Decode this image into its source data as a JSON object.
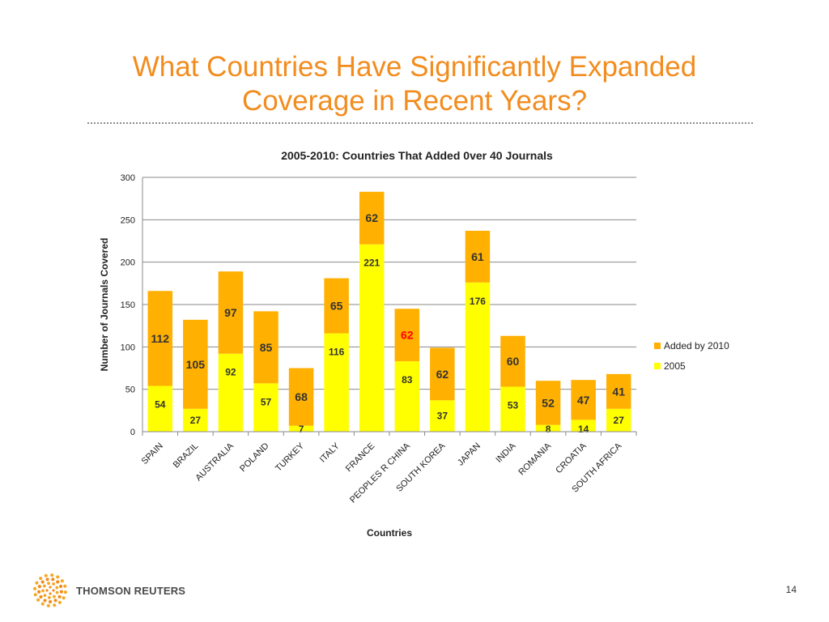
{
  "slide": {
    "title_line1": "What Countries Have Significantly Expanded",
    "title_line2": "Coverage in Recent Years?",
    "page_number": "14",
    "brand": "THOMSON REUTERS"
  },
  "colors": {
    "title": "#F28C1E",
    "added": "#FFB000",
    "base": "#FFFF00",
    "highlight_label": "#FF0000"
  },
  "icons": {
    "logo": "thomson-reuters-dot-ring-icon"
  },
  "chart_data": {
    "type": "bar",
    "stacked": true,
    "title": "2005-2010: Countries That Added 0ver 40 Journals",
    "xlabel": "Countries",
    "ylabel": "Number of Journals Covered",
    "ylim": [
      0,
      300
    ],
    "yticks": [
      0,
      50,
      100,
      150,
      200,
      250,
      300
    ],
    "grid": true,
    "legend_position": "right",
    "categories": [
      "SPAIN",
      "BRAZIL",
      "AUSTRALIA",
      "POLAND",
      "TURKEY",
      "ITALY",
      "FRANCE",
      "PEOPLES R CHINA",
      "SOUTH KOREA",
      "JAPAN",
      "INDIA",
      "ROMANIA",
      "CROATIA",
      "SOUTH AFRICA"
    ],
    "series": [
      {
        "name": "2005",
        "values": [
          54,
          27,
          92,
          57,
          7,
          116,
          221,
          83,
          37,
          176,
          53,
          8,
          14,
          27
        ]
      },
      {
        "name": "Added by 2010",
        "values": [
          112,
          105,
          97,
          85,
          68,
          65,
          62,
          62,
          62,
          61,
          60,
          52,
          47,
          41
        ]
      }
    ],
    "highlighted_labels": [
      {
        "series": "Added by 2010",
        "category": "PEOPLES R CHINA"
      }
    ]
  }
}
